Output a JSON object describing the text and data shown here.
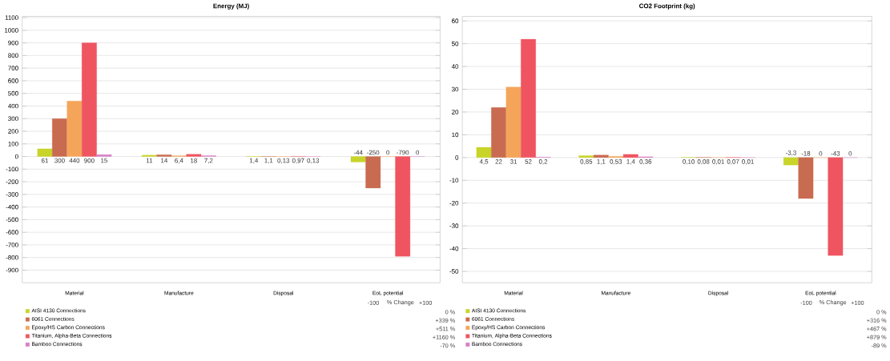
{
  "chart_data": [
    {
      "type": "bar",
      "title": "Energy (MJ)",
      "categories": [
        "Material",
        "Manufacture",
        "Disposal",
        "EoL potential"
      ],
      "ylim": [
        -1000,
        1110
      ],
      "yticks": [
        -900,
        -800,
        -700,
        -600,
        -500,
        -400,
        -300,
        -200,
        -100,
        0,
        100,
        200,
        300,
        400,
        500,
        600,
        700,
        800,
        900,
        1000,
        1100
      ],
      "grid": "y",
      "legend": "bottom left",
      "series": [
        {
          "name": "AISI 4130 Connections",
          "color": "#c8d42a",
          "values": [
            61,
            11,
            1.4,
            -44
          ],
          "value_labels": [
            "61",
            "11",
            "1,4",
            "-44"
          ]
        },
        {
          "name": "6061 Connections",
          "color": "#c96b50",
          "values": [
            300,
            14,
            1.1,
            -250
          ],
          "value_labels": [
            "300",
            "14",
            "1,1",
            "-250"
          ]
        },
        {
          "name": "Epoxy/HS Carbon Connections",
          "color": "#f4a55a",
          "values": [
            440,
            6.4,
            0.13,
            0
          ],
          "value_labels": [
            "440",
            "6,4",
            "0,13",
            "0"
          ]
        },
        {
          "name": "Titanium, Alpha-Beta Connections",
          "color": "#ef5560",
          "values": [
            900,
            18,
            0.97,
            -790
          ],
          "value_labels": [
            "900",
            "18",
            "0,97",
            "-790"
          ]
        },
        {
          "name": "Bamboo Connections",
          "color": "#d77fc6",
          "values": [
            15,
            7.2,
            0.13,
            0
          ],
          "value_labels": [
            "15",
            "7,2",
            "0,13",
            "0"
          ]
        }
      ],
      "annotations": [
        "% Change",
        "-100",
        "+100",
        "0 %",
        "+339 %",
        "+511 %",
        "+1160 %",
        "-70 %"
      ]
    },
    {
      "type": "bar",
      "title": "CO2 Footprint (kg)",
      "categories": [
        "Material",
        "Manufacture",
        "Disposal",
        "EoL potential"
      ],
      "ylim": [
        -55,
        62
      ],
      "yticks": [
        -50,
        -40,
        -30,
        -20,
        -10,
        0,
        10,
        20,
        30,
        40,
        50,
        60
      ],
      "grid": "y",
      "legend": "bottom left",
      "series": [
        {
          "name": "AISI 4130 Connections",
          "color": "#c8d42a",
          "values": [
            4.5,
            0.85,
            0.1,
            -3.3
          ],
          "value_labels": [
            "4,5",
            "0,85",
            "0,10",
            "-3,3"
          ]
        },
        {
          "name": "6061 Connections",
          "color": "#c96b50",
          "values": [
            22,
            1.1,
            0.08,
            -18
          ],
          "value_labels": [
            "22",
            "1,1",
            "0,08",
            "-18"
          ]
        },
        {
          "name": "Epoxy/HS Carbon Connections",
          "color": "#f4a55a",
          "values": [
            31,
            0.53,
            0.01,
            0
          ],
          "value_labels": [
            "31",
            "0,53",
            "0,01",
            "0"
          ]
        },
        {
          "name": "Titanium, Alpha-Beta Connections",
          "color": "#ef5560",
          "values": [
            52,
            1.4,
            0.07,
            -43
          ],
          "value_labels": [
            "52",
            "1,4",
            "0,07",
            "-43"
          ]
        },
        {
          "name": "Bamboo Connections",
          "color": "#d77fc6",
          "values": [
            0.2,
            0.36,
            0.01,
            0
          ],
          "value_labels": [
            "0,2",
            "0,36",
            "0,01",
            "0"
          ]
        }
      ],
      "annotations": [
        "% Change",
        "-100",
        "+100",
        "0 %",
        "+316 %",
        "+467 %",
        "+879 %",
        "-89 %"
      ]
    }
  ]
}
